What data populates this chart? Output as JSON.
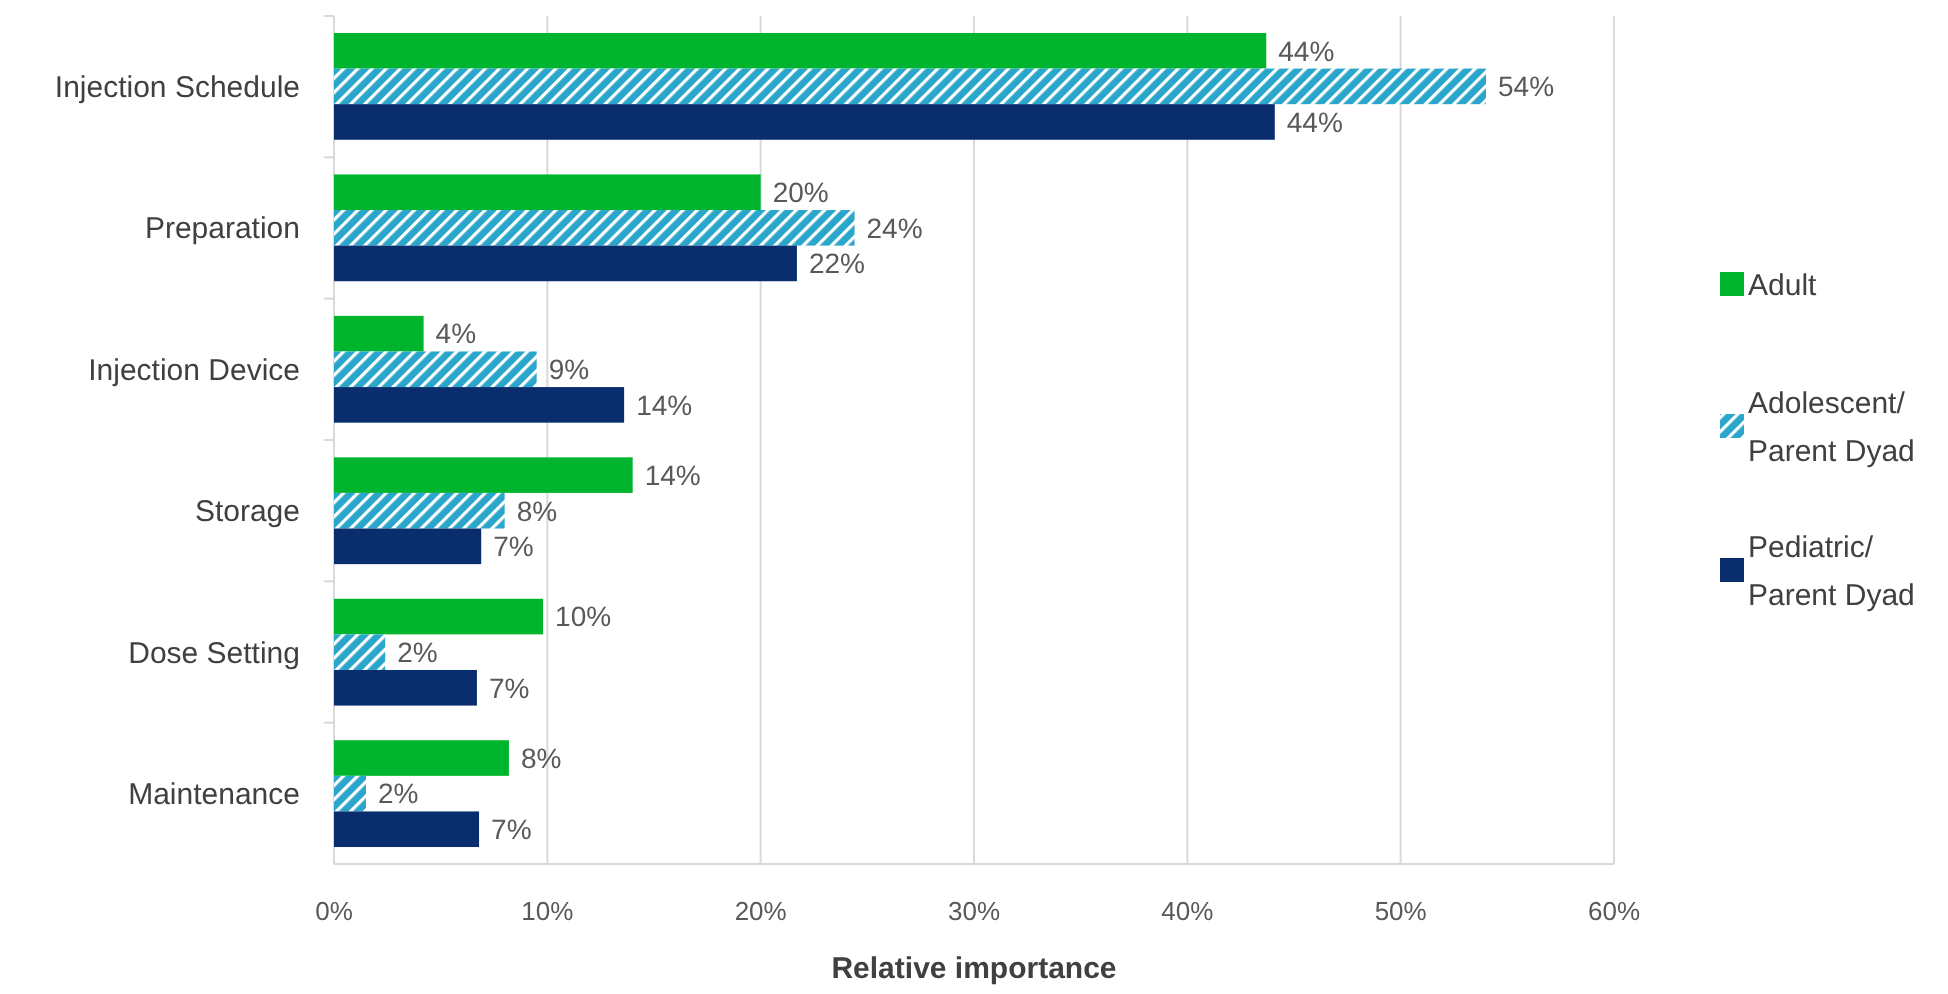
{
  "chart_data": {
    "type": "bar",
    "orientation": "horizontal",
    "xlabel": "Relative importance",
    "categories": [
      "Injection Schedule",
      "Preparation",
      "Injection Device",
      "Storage",
      "Dose Setting",
      "Maintenance"
    ],
    "series": [
      {
        "name": "Adult",
        "color": "#00b52e",
        "values": [
          43.7,
          20.0,
          4.2,
          14.0,
          9.8,
          8.2
        ],
        "value_labels": [
          "44%",
          "20%",
          "4%",
          "14%",
          "10%",
          "8%"
        ]
      },
      {
        "name": "Adolescent/ Parent Dyad",
        "color": "#2ba6cb",
        "values": [
          54.0,
          24.4,
          9.5,
          8.0,
          2.4,
          1.5
        ],
        "value_labels": [
          "54%",
          "24%",
          "9%",
          "8%",
          "2%",
          "2%"
        ]
      },
      {
        "name": "Pediatric/ Parent Dyad",
        "color": "#0a2d6e",
        "values": [
          44.1,
          21.7,
          13.6,
          6.9,
          6.7,
          6.8
        ],
        "value_labels": [
          "44%",
          "22%",
          "14%",
          "7%",
          "7%",
          "7%"
        ]
      }
    ],
    "xlim": [
      0,
      60
    ],
    "xticks": [
      {
        "value": 0,
        "label": "0%"
      },
      {
        "value": 10,
        "label": "10%"
      },
      {
        "value": 20,
        "label": "20%"
      },
      {
        "value": 30,
        "label": "30%"
      },
      {
        "value": 40,
        "label": "40%"
      },
      {
        "value": 50,
        "label": "50%"
      },
      {
        "value": 60,
        "label": "60%"
      }
    ],
    "grid": "x",
    "legend": "right"
  }
}
